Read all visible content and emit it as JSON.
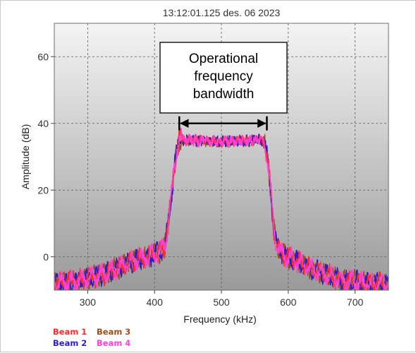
{
  "chart_data": {
    "type": "line",
    "title": "13:12:01.125 des. 06 2023",
    "xlabel": "Frequency (kHz)",
    "ylabel": "Amplitude (dB)",
    "xlim": [
      250,
      750
    ],
    "ylim": [
      -10,
      70
    ],
    "xticks": [
      300,
      400,
      500,
      600,
      700
    ],
    "yticks": [
      0,
      20,
      40,
      60
    ],
    "grid": true,
    "grid_style": "dashed",
    "legend_position": "bottom-left",
    "annotation": {
      "lines": [
        "Operational",
        "frequency",
        "bandwidth"
      ],
      "arrow_x": [
        437,
        568
      ],
      "arrow_y": 40
    },
    "series": [
      {
        "name": "Beam 1",
        "color": "#ff2a2a"
      },
      {
        "name": "Beam 2",
        "color": "#2a1ec8"
      },
      {
        "name": "Beam 3",
        "color": "#9c4f1c"
      },
      {
        "name": "Beam 4",
        "color": "#ff40d8"
      }
    ],
    "envelope": {
      "x": [
        250,
        290,
        320,
        350,
        370,
        390,
        405,
        415,
        420,
        425,
        430,
        435,
        437,
        445,
        500,
        560,
        565,
        570,
        575,
        578,
        582,
        590,
        610,
        640,
        680,
        720,
        750
      ],
      "y": [
        -8,
        -7,
        -5.5,
        -3,
        -1,
        0,
        1,
        3,
        9,
        18,
        28,
        33,
        35,
        35,
        34.5,
        35,
        34,
        28,
        17,
        9,
        4,
        1,
        -1,
        -4,
        -7,
        -8,
        -8
      ]
    }
  }
}
